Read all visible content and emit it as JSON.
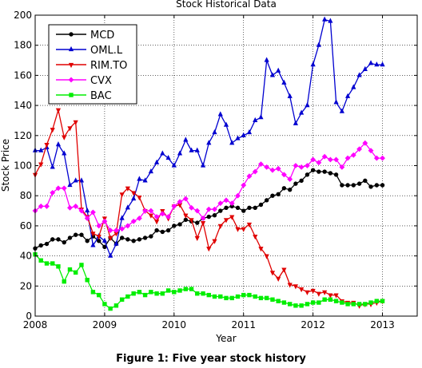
{
  "chart_data": {
    "type": "line",
    "title": "Stock Historical Data",
    "xlabel": "Year",
    "ylabel": "Stock Price",
    "xlim": [
      2008,
      2013.5
    ],
    "ylim": [
      0,
      200
    ],
    "xticks": [
      2008,
      2009,
      2010,
      2011,
      2012,
      2013
    ],
    "yticks": [
      0,
      20,
      40,
      60,
      80,
      100,
      120,
      140,
      160,
      180,
      200
    ],
    "xtick_labels": [
      "2008",
      "2009",
      "2010",
      "2011",
      "2012",
      "2013"
    ],
    "ytick_labels": [
      "0",
      "20",
      "40",
      "60",
      "80",
      "100",
      "120",
      "140",
      "160",
      "180",
      "200"
    ],
    "grid": true,
    "legend_position": "top-left",
    "series": [
      {
        "name": "MCD",
        "color": "#000000",
        "marker": "circle",
        "x": [
          2008.0,
          2008.083,
          2008.167,
          2008.25,
          2008.333,
          2008.417,
          2008.5,
          2008.583,
          2008.667,
          2008.75,
          2008.833,
          2008.917,
          2009.0,
          2009.083,
          2009.167,
          2009.25,
          2009.333,
          2009.417,
          2009.5,
          2009.583,
          2009.667,
          2009.75,
          2009.833,
          2009.917,
          2010.0,
          2010.083,
          2010.167,
          2010.25,
          2010.333,
          2010.417,
          2010.5,
          2010.583,
          2010.667,
          2010.75,
          2010.833,
          2010.917,
          2011.0,
          2011.083,
          2011.167,
          2011.25,
          2011.333,
          2011.417,
          2011.5,
          2011.583,
          2011.667,
          2011.75,
          2011.833,
          2011.917,
          2012.0,
          2012.083,
          2012.167,
          2012.25,
          2012.333,
          2012.417,
          2012.5,
          2012.583,
          2012.667,
          2012.75,
          2012.833,
          2012.917,
          2013.0
        ],
        "y": [
          45,
          47,
          48,
          51,
          51,
          49,
          52,
          54,
          54,
          50,
          53,
          50,
          46,
          52,
          48,
          52,
          51,
          50,
          51,
          52,
          53,
          57,
          56,
          57,
          60,
          61,
          64,
          63,
          62,
          65,
          66,
          67,
          70,
          72,
          73,
          72,
          70,
          72,
          72,
          74,
          77,
          80,
          81,
          85,
          84,
          88,
          90,
          94,
          97,
          96,
          96,
          95,
          94,
          87,
          87,
          87,
          88,
          90,
          86,
          87,
          87
        ]
      },
      {
        "name": "OML.L",
        "color": "#0000d0",
        "marker": "triangle-up",
        "x": [
          2008.0,
          2008.083,
          2008.167,
          2008.25,
          2008.333,
          2008.417,
          2008.5,
          2008.583,
          2008.667,
          2008.75,
          2008.833,
          2008.917,
          2009.0,
          2009.083,
          2009.167,
          2009.25,
          2009.333,
          2009.417,
          2009.5,
          2009.583,
          2009.667,
          2009.75,
          2009.833,
          2009.917,
          2010.0,
          2010.083,
          2010.167,
          2010.25,
          2010.333,
          2010.417,
          2010.5,
          2010.583,
          2010.667,
          2010.75,
          2010.833,
          2010.917,
          2011.0,
          2011.083,
          2011.167,
          2011.25,
          2011.333,
          2011.417,
          2011.5,
          2011.583,
          2011.667,
          2011.75,
          2011.833,
          2011.917,
          2012.0,
          2012.083,
          2012.167,
          2012.25,
          2012.333,
          2012.417,
          2012.5,
          2012.583,
          2012.667,
          2012.75,
          2012.833,
          2012.917,
          2013.0
        ],
        "y": [
          110,
          110,
          112,
          99,
          114,
          108,
          87,
          90,
          90,
          70,
          47,
          53,
          50,
          40,
          48,
          65,
          72,
          78,
          91,
          90,
          96,
          102,
          108,
          105,
          100,
          108,
          117,
          110,
          110,
          100,
          115,
          122,
          134,
          127,
          115,
          118,
          120,
          122,
          130,
          132,
          170,
          160,
          163,
          155,
          146,
          128,
          135,
          140,
          167,
          180,
          197,
          196,
          142,
          136,
          146,
          152,
          160,
          164,
          168,
          167,
          167
        ]
      },
      {
        "name": "RIM.TO",
        "color": "#e00000",
        "marker": "triangle-down",
        "x": [
          2008.0,
          2008.083,
          2008.167,
          2008.25,
          2008.333,
          2008.417,
          2008.5,
          2008.583,
          2008.667,
          2008.75,
          2008.833,
          2008.917,
          2009.0,
          2009.083,
          2009.167,
          2009.25,
          2009.333,
          2009.417,
          2009.5,
          2009.583,
          2009.667,
          2009.75,
          2009.833,
          2009.917,
          2010.0,
          2010.083,
          2010.167,
          2010.25,
          2010.333,
          2010.417,
          2010.5,
          2010.583,
          2010.667,
          2010.75,
          2010.833,
          2010.917,
          2011.0,
          2011.083,
          2011.167,
          2011.25,
          2011.333,
          2011.417,
          2011.5,
          2011.583,
          2011.667,
          2011.75,
          2011.833,
          2011.917,
          2012.0,
          2012.083,
          2012.167,
          2012.25,
          2012.333,
          2012.417,
          2012.5,
          2012.583,
          2012.667,
          2012.75,
          2012.833,
          2012.917,
          2013.0
        ],
        "y": [
          94,
          101,
          114,
          124,
          137,
          119,
          125,
          129,
          71,
          66,
          55,
          53,
          65,
          52,
          55,
          81,
          85,
          82,
          79,
          70,
          67,
          63,
          70,
          65,
          73,
          74,
          67,
          64,
          52,
          62,
          45,
          50,
          60,
          64,
          66,
          58,
          58,
          61,
          53,
          45,
          40,
          29,
          25,
          31,
          21,
          20,
          18,
          16,
          17,
          15,
          16,
          14,
          14,
          10,
          9,
          9,
          7,
          8,
          8,
          9,
          10
        ]
      },
      {
        "name": "CVX",
        "color": "#ff00ff",
        "marker": "diamond",
        "x": [
          2008.0,
          2008.083,
          2008.167,
          2008.25,
          2008.333,
          2008.417,
          2008.5,
          2008.583,
          2008.667,
          2008.75,
          2008.833,
          2008.917,
          2009.0,
          2009.083,
          2009.167,
          2009.25,
          2009.333,
          2009.417,
          2009.5,
          2009.583,
          2009.667,
          2009.75,
          2009.833,
          2009.917,
          2010.0,
          2010.083,
          2010.167,
          2010.25,
          2010.333,
          2010.417,
          2010.5,
          2010.583,
          2010.667,
          2010.75,
          2010.833,
          2010.917,
          2011.0,
          2011.083,
          2011.167,
          2011.25,
          2011.333,
          2011.417,
          2011.5,
          2011.583,
          2011.667,
          2011.75,
          2011.833,
          2011.917,
          2012.0,
          2012.083,
          2012.167,
          2012.25,
          2012.333,
          2012.417,
          2012.5,
          2012.583,
          2012.667,
          2012.75,
          2012.833,
          2012.917,
          2013.0
        ],
        "y": [
          70,
          73,
          73,
          82,
          85,
          85,
          72,
          73,
          70,
          65,
          69,
          60,
          63,
          57,
          57,
          58,
          60,
          63,
          65,
          70,
          70,
          66,
          68,
          66,
          73,
          76,
          78,
          72,
          70,
          65,
          71,
          71,
          75,
          77,
          75,
          80,
          87,
          93,
          96,
          101,
          99,
          97,
          98,
          94,
          91,
          100,
          99,
          100,
          104,
          102,
          106,
          104,
          104,
          99,
          105,
          107,
          111,
          115,
          110,
          105,
          105
        ]
      },
      {
        "name": "BAC",
        "color": "#00ee00",
        "marker": "square",
        "x": [
          2008.0,
          2008.083,
          2008.167,
          2008.25,
          2008.333,
          2008.417,
          2008.5,
          2008.583,
          2008.667,
          2008.75,
          2008.833,
          2008.917,
          2009.0,
          2009.083,
          2009.167,
          2009.25,
          2009.333,
          2009.417,
          2009.5,
          2009.583,
          2009.667,
          2009.75,
          2009.833,
          2009.917,
          2010.0,
          2010.083,
          2010.167,
          2010.25,
          2010.333,
          2010.417,
          2010.5,
          2010.583,
          2010.667,
          2010.75,
          2010.833,
          2010.917,
          2011.0,
          2011.083,
          2011.167,
          2011.25,
          2011.333,
          2011.417,
          2011.5,
          2011.583,
          2011.667,
          2011.75,
          2011.833,
          2011.917,
          2012.0,
          2012.083,
          2012.167,
          2012.25,
          2012.333,
          2012.417,
          2012.5,
          2012.583,
          2012.667,
          2012.75,
          2012.833,
          2012.917,
          2013.0
        ],
        "y": [
          41,
          37,
          35,
          35,
          33,
          23,
          31,
          29,
          34,
          24,
          16,
          14,
          8,
          5,
          7,
          11,
          13,
          15,
          16,
          14,
          16,
          15,
          15,
          17,
          16,
          17,
          18,
          18,
          15,
          15,
          14,
          13,
          13,
          12,
          12,
          13,
          14,
          14,
          13,
          12,
          12,
          11,
          10,
          9,
          8,
          7,
          7,
          8,
          9,
          9,
          11,
          11,
          10,
          9,
          8,
          8,
          8,
          8,
          9,
          10,
          10
        ]
      }
    ]
  },
  "caption": "Figure 1: Five year stock history"
}
